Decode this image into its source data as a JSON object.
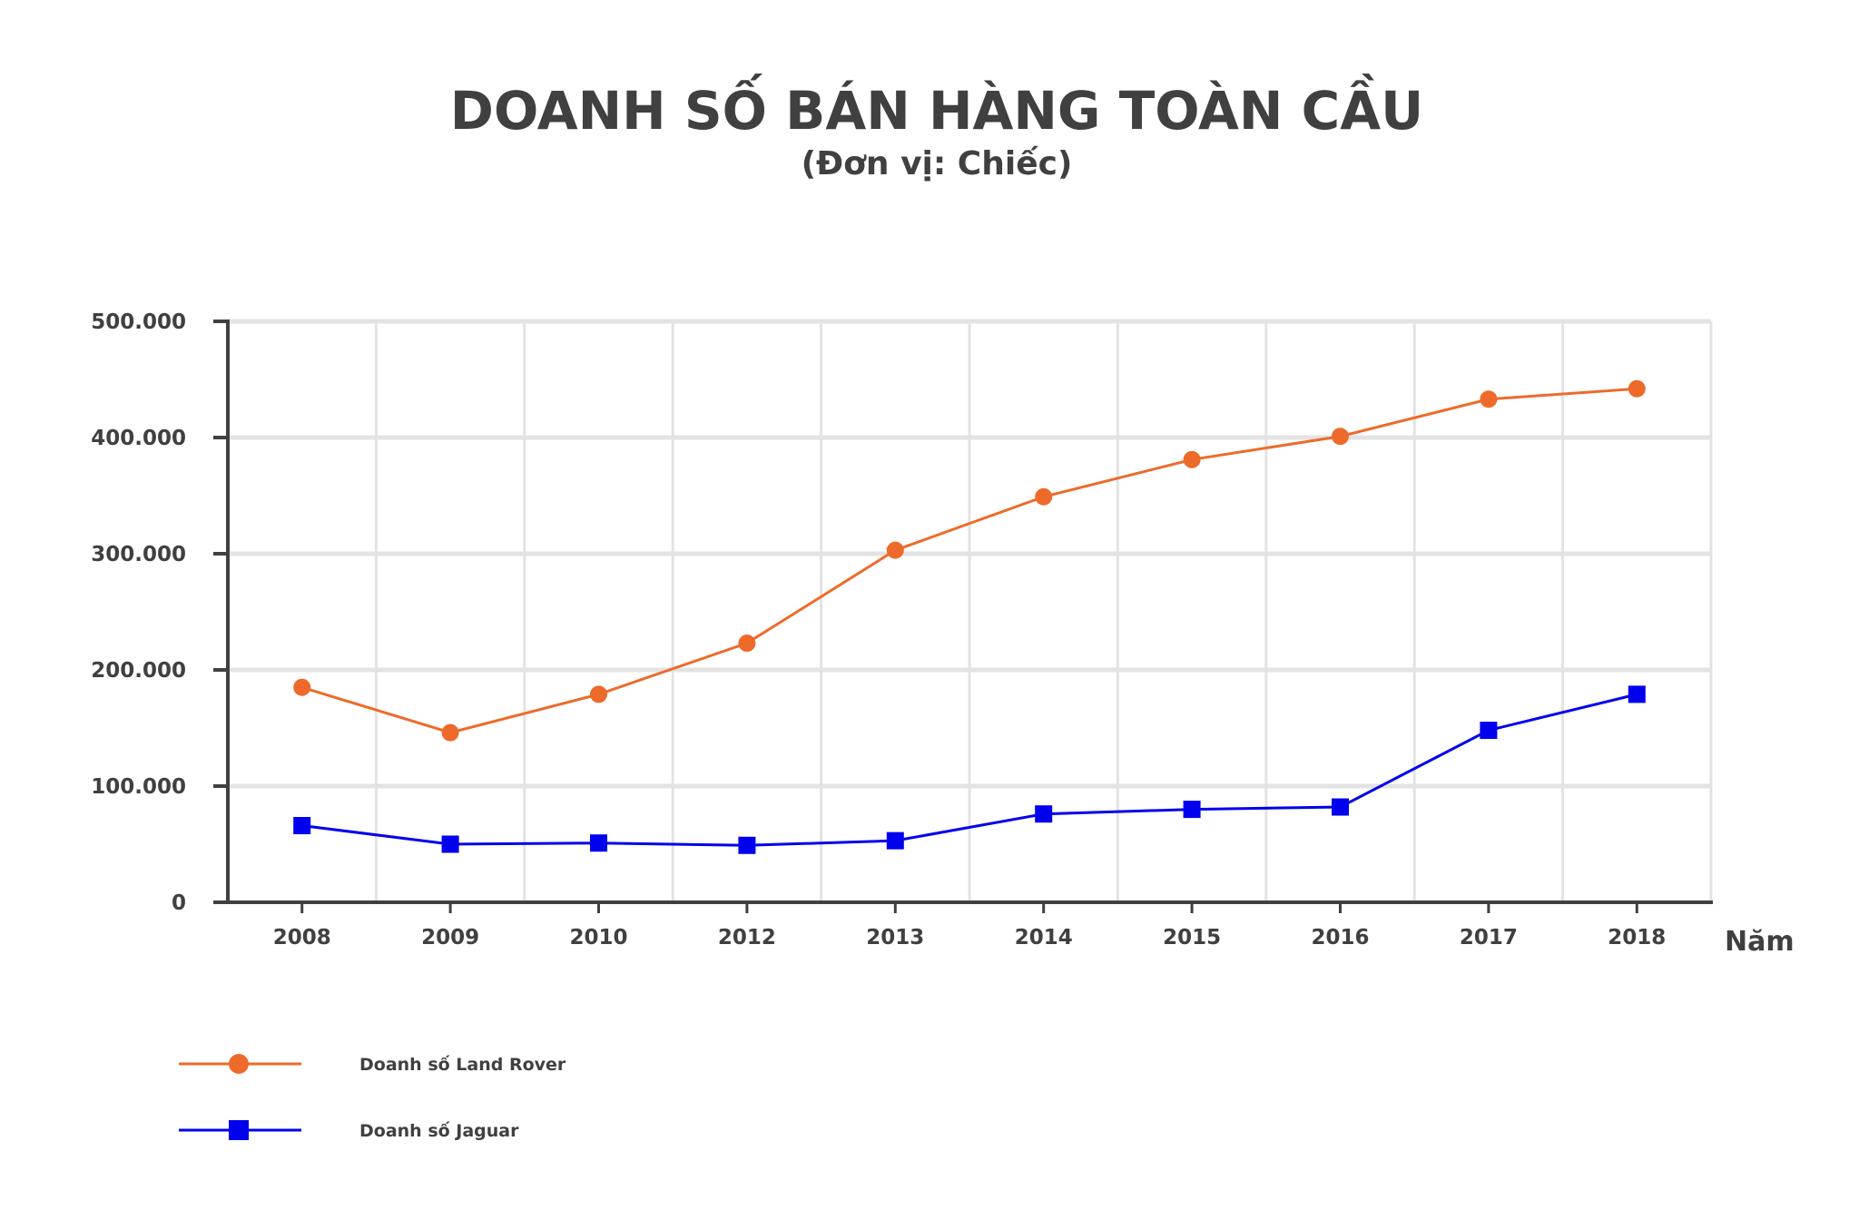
{
  "chart_data": {
    "type": "line",
    "title": "DOANH SỐ BÁN HÀNG TOÀN CẦU",
    "subtitle": "(Đơn vị: Chiếc)",
    "xlabel": "Năm",
    "ylabel": "",
    "categories": [
      "2008",
      "2009",
      "2010",
      "2012",
      "2013",
      "2014",
      "2015",
      "2016",
      "2017",
      "2018"
    ],
    "ylim": [
      0,
      500000
    ],
    "yticks": [
      0,
      100000,
      200000,
      300000,
      400000,
      500000
    ],
    "ytick_labels": [
      "0",
      "100.000",
      "200.000",
      "300.000",
      "400.000",
      "500.000"
    ],
    "grid": true,
    "legend_position": "bottom-left",
    "series": [
      {
        "name": "Doanh số Land Rover",
        "color": "#EE6A2A",
        "marker": "circle",
        "values": [
          185000,
          146000,
          179000,
          223000,
          303000,
          349000,
          381000,
          401000,
          433000,
          442000
        ]
      },
      {
        "name": "Doanh số Jaguar",
        "color": "#0000EE",
        "marker": "square",
        "values": [
          66000,
          50000,
          51000,
          49000,
          53000,
          76000,
          80000,
          82000,
          148000,
          179000
        ]
      }
    ]
  }
}
